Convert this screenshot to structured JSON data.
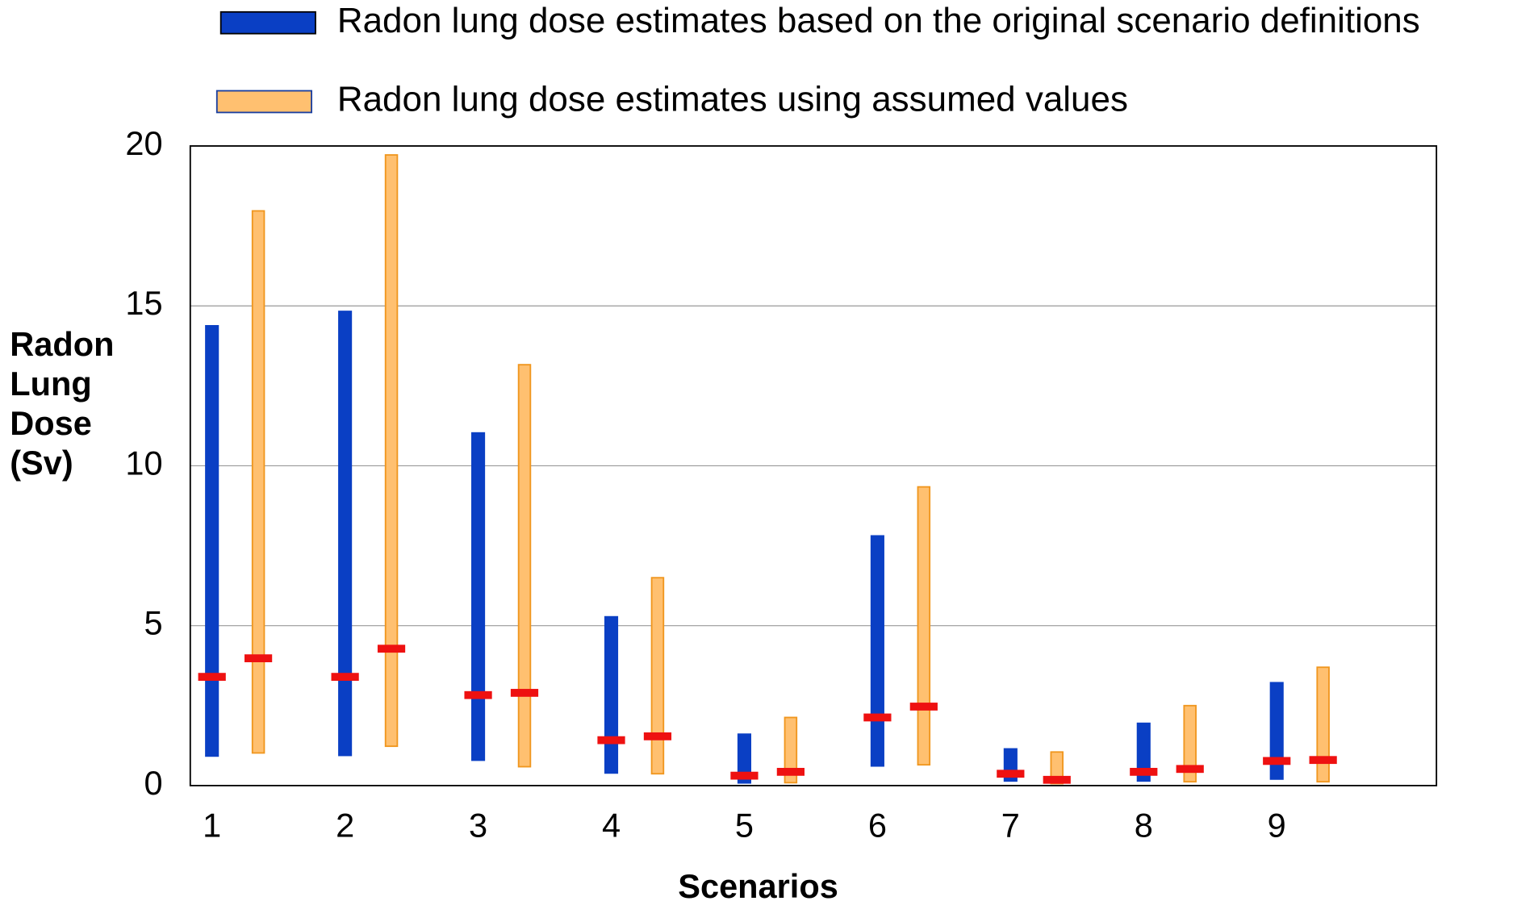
{
  "chart_data": {
    "type": "range_bar",
    "xlabel": "Scenarios",
    "ylabel": "Radon Lung Dose (Sv)",
    "categories": [
      "1",
      "2",
      "3",
      "4",
      "5",
      "6",
      "7",
      "8",
      "9"
    ],
    "series": [
      {
        "name": "Radon lung dose estimates based on the original scenario definitions",
        "color": "#0a3fc4",
        "low": [
          0.9,
          0.92,
          0.77,
          0.37,
          0.06,
          0.59,
          0.12,
          0.12,
          0.18
        ],
        "high": [
          14.4,
          14.85,
          11.05,
          5.3,
          1.63,
          7.83,
          1.17,
          1.97,
          3.24
        ],
        "median": [
          3.4,
          3.4,
          2.83,
          1.42,
          0.31,
          2.13,
          0.37,
          0.43,
          0.77
        ]
      },
      {
        "name": "Radon lung dose estimates using assumed values",
        "color": "#ffc070",
        "low": [
          1.02,
          1.23,
          0.59,
          0.37,
          0.09,
          0.65,
          0.06,
          0.12,
          0.12
        ],
        "high": [
          17.97,
          19.72,
          13.16,
          6.5,
          2.13,
          9.34,
          1.05,
          2.5,
          3.7
        ],
        "median": [
          3.98,
          4.28,
          2.9,
          1.54,
          0.43,
          2.47,
          0.18,
          0.52,
          0.8
        ]
      }
    ],
    "median_color": "#ee1111",
    "ylim": [
      0,
      20
    ],
    "yticks": [
      0,
      5,
      10,
      15,
      20
    ],
    "grid": true
  }
}
